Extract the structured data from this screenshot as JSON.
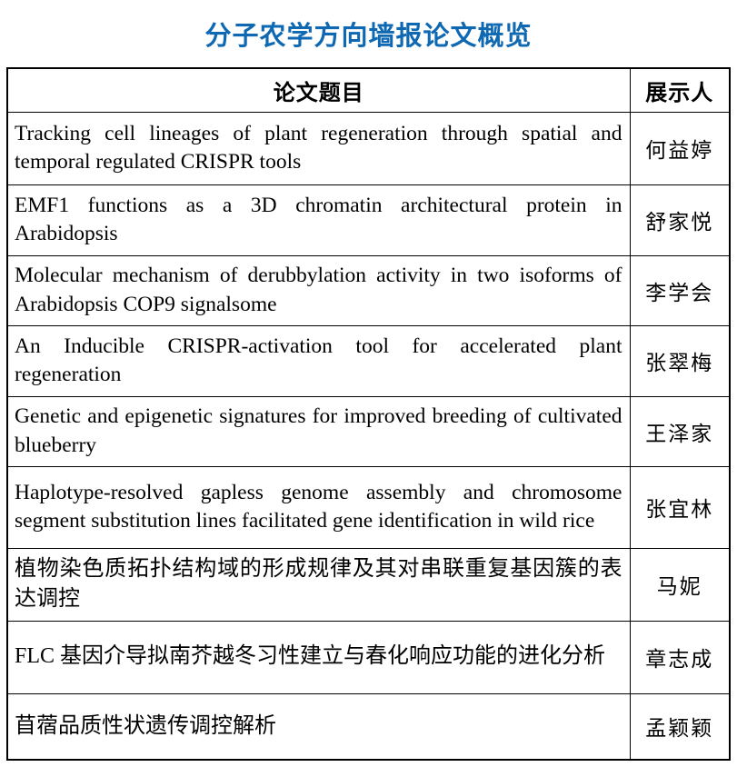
{
  "title": "分子农学方向墙报论文概览",
  "colors": {
    "title_blue": "#0F68B2",
    "border": "#000000",
    "text": "#000000"
  },
  "table": {
    "headers": {
      "title": "论文题目",
      "presenter": "展示人"
    },
    "rows": [
      {
        "title": "Tracking cell lineages of plant regeneration through spatial and temporal regulated CRISPR tools",
        "presenter": "何益婷",
        "lang": "en"
      },
      {
        "title": "EMF1 functions as a 3D chromatin architectural protein in Arabidopsis",
        "presenter": "舒家悦",
        "lang": "en"
      },
      {
        "title": "Molecular mechanism of derubbylation activity in two isoforms of Arabidopsis COP9 signalsome",
        "presenter": "李学会",
        "lang": "en"
      },
      {
        "title": "An Inducible CRISPR-activation tool for accelerated plant regeneration",
        "presenter": "张翠梅",
        "lang": "en"
      },
      {
        "title": "Genetic and epigenetic signatures for improved breeding of cultivated blueberry",
        "presenter": "王泽家",
        "lang": "en"
      },
      {
        "title": "Haplotype-resolved gapless genome assembly and chromosome segment substitution lines facilitated gene identification in wild rice",
        "presenter": "张宜林",
        "lang": "en"
      },
      {
        "title": "植物染色质拓扑结构域的形成规律及其对串联重复基因簇的表达调控",
        "presenter": "马妮",
        "lang": "zh"
      },
      {
        "title": "FLC 基因介导拟南芥越冬习性建立与春化响应功能的进化分析",
        "presenter": "章志成",
        "lang": "zh"
      },
      {
        "title": "苜蓿品质性状遗传调控解析",
        "presenter": "孟颖颖",
        "lang": "zh"
      }
    ]
  }
}
